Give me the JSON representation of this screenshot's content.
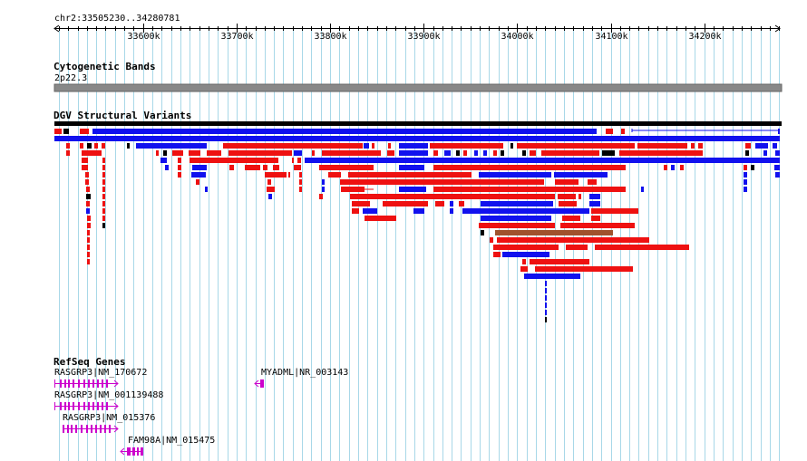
{
  "ruler": {
    "range_label": "chr2:33505230..34280781",
    "start": 33505230,
    "end": 34280781,
    "ticks": [
      "33600k",
      "33700k",
      "33800k",
      "33900k",
      "34000k",
      "34100k",
      "34200k"
    ],
    "tick_values": [
      33600000,
      33700000,
      33800000,
      33900000,
      34000000,
      34100000,
      34200000
    ]
  },
  "tracks": {
    "cytoband": {
      "title": "Cytogenetic Bands",
      "band_label": "2p22.3"
    },
    "dgv": {
      "title": "DGV Structural Variants"
    },
    "refseq": {
      "title": "RefSeq Genes",
      "genes": [
        {
          "label": "RASGRP3|NM_170672"
        },
        {
          "label": "MYADML|NR_003143"
        },
        {
          "label": "RASGRP3|NM_001139488"
        },
        {
          "label": "RASGRP3|NM_015376"
        },
        {
          "label": "FAM98A|NM_015475"
        }
      ]
    }
  },
  "colors": {
    "grid": "#a8d8e8",
    "variant_loss": "#ee1111",
    "variant_gain": "#1111ee",
    "variant_other": "#000000",
    "variant_brown": "#a0522d",
    "gene": "#cc00cc",
    "band": "#888888"
  }
}
